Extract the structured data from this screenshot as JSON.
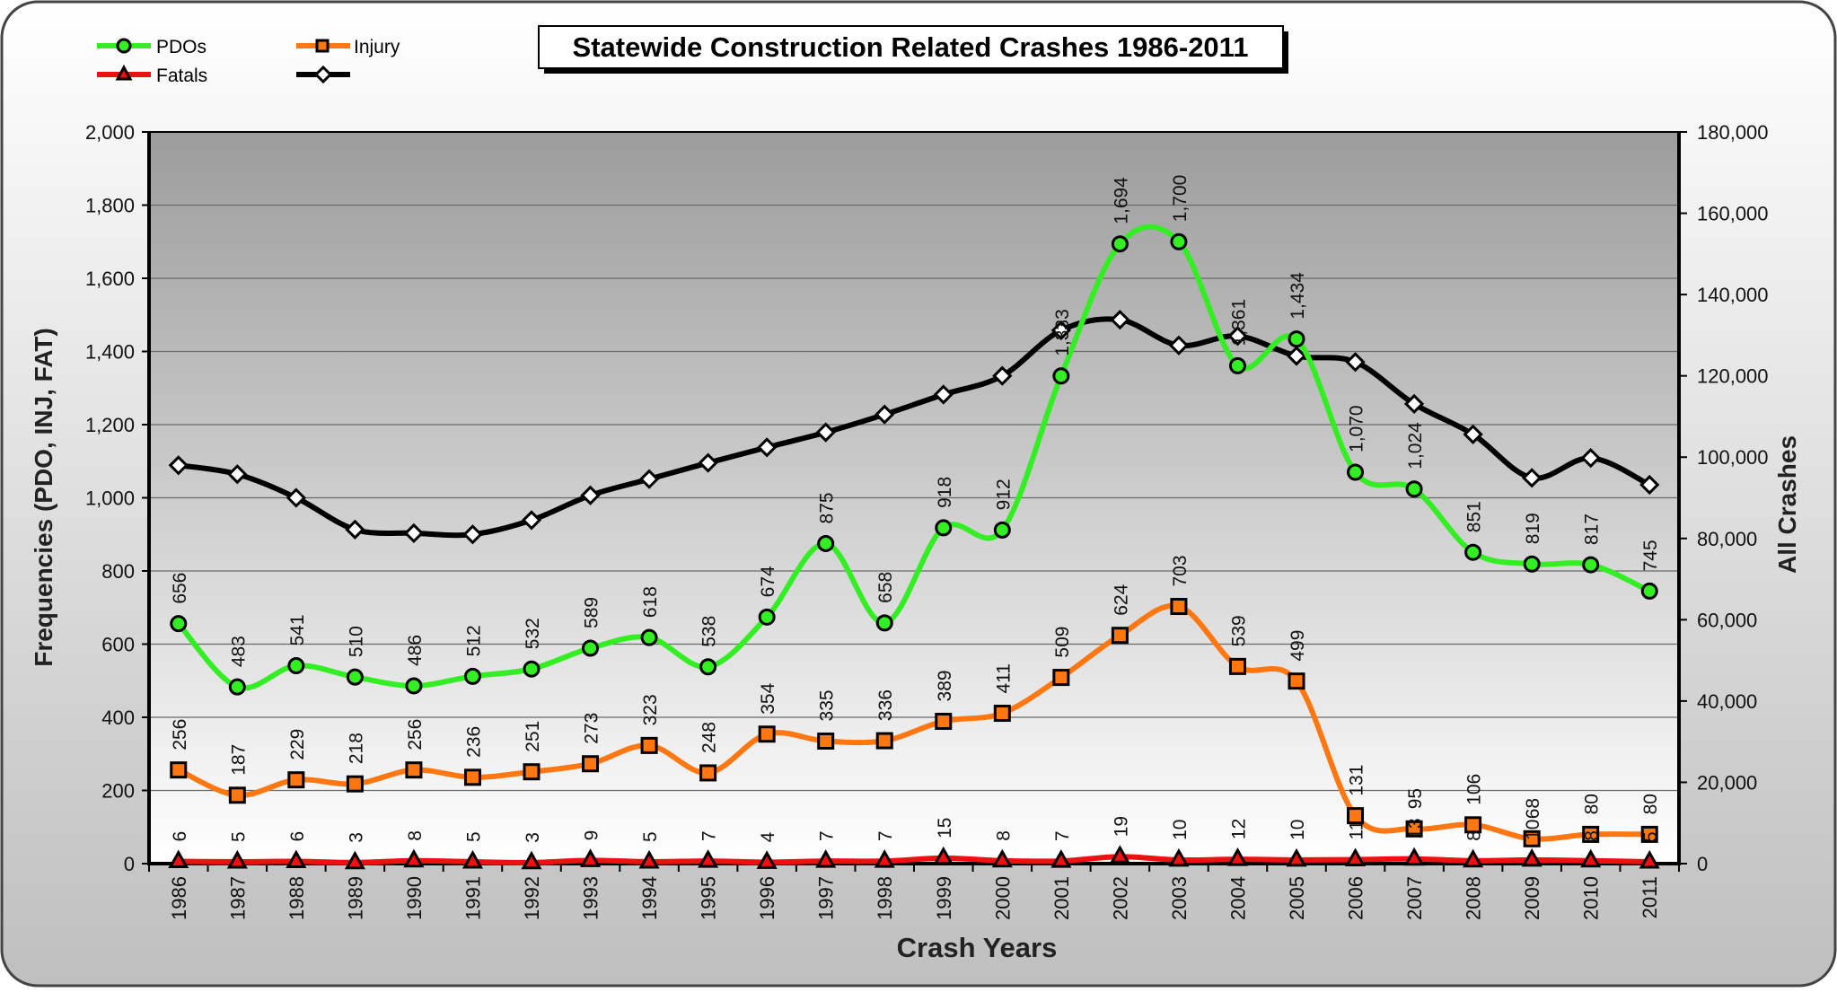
{
  "chart_data": {
    "type": "line",
    "title": "Statewide Construction Related Crashes 1986-2011",
    "xlabel": "Crash Years",
    "ylabel": "Frequencies (PDO, INJ, FAT)",
    "ylabel_right": "All Crashes",
    "ylim": [
      0,
      2000
    ],
    "ylim_right": [
      0,
      180000
    ],
    "yticks": [
      "0",
      "200",
      "400",
      "600",
      "800",
      "1,000",
      "1,200",
      "1,400",
      "1,600",
      "1,800",
      "2,000"
    ],
    "yticks_right": [
      "0",
      "20,000",
      "40,000",
      "60,000",
      "80,000",
      "100,000",
      "120,000",
      "140,000",
      "160,000",
      "180,000"
    ],
    "grid": true,
    "legend": "top-left",
    "categories": [
      "1986",
      "1987",
      "1988",
      "1989",
      "1990",
      "1991",
      "1992",
      "1993",
      "1994",
      "1995",
      "1996",
      "1997",
      "1998",
      "1999",
      "2000",
      "2001",
      "2002",
      "2003",
      "2004",
      "2005",
      "2006",
      "2007",
      "2008",
      "2009",
      "2010",
      "2011"
    ],
    "series": [
      {
        "name": "PDOs",
        "axis": "left",
        "color": "#33ee22",
        "marker": "circle",
        "labels": true,
        "values": [
          656,
          483,
          541,
          510,
          486,
          512,
          532,
          589,
          618,
          538,
          674,
          875,
          658,
          918,
          912,
          1333,
          1694,
          1700,
          1361,
          1434,
          1070,
          1024,
          851,
          819,
          817,
          745
        ]
      },
      {
        "name": "Injury",
        "axis": "left",
        "color": "#ff7711",
        "marker": "square",
        "labels": true,
        "values": [
          256,
          187,
          229,
          218,
          256,
          236,
          251,
          273,
          323,
          248,
          354,
          335,
          336,
          389,
          411,
          509,
          624,
          703,
          539,
          499,
          131,
          95,
          106,
          68,
          80,
          80
        ]
      },
      {
        "name": "Fatals",
        "axis": "left",
        "color": "#ee1111",
        "marker": "triangle",
        "labels": true,
        "values": [
          6,
          5,
          6,
          3,
          8,
          5,
          3,
          9,
          5,
          7,
          4,
          7,
          7,
          15,
          8,
          7,
          19,
          10,
          12,
          10,
          11,
          13,
          8,
          10,
          8,
          5
        ]
      },
      {
        "name": "",
        "axis": "right",
        "color": "#000000",
        "marker": "diamond",
        "labels": false,
        "values": [
          98000,
          95800,
          90000,
          82200,
          81300,
          81000,
          84500,
          90600,
          94600,
          98600,
          102400,
          106100,
          110500,
          115400,
          120000,
          131200,
          133800,
          127500,
          129800,
          124900,
          123400,
          113100,
          105600,
          94900,
          99800,
          93200
        ]
      }
    ]
  }
}
